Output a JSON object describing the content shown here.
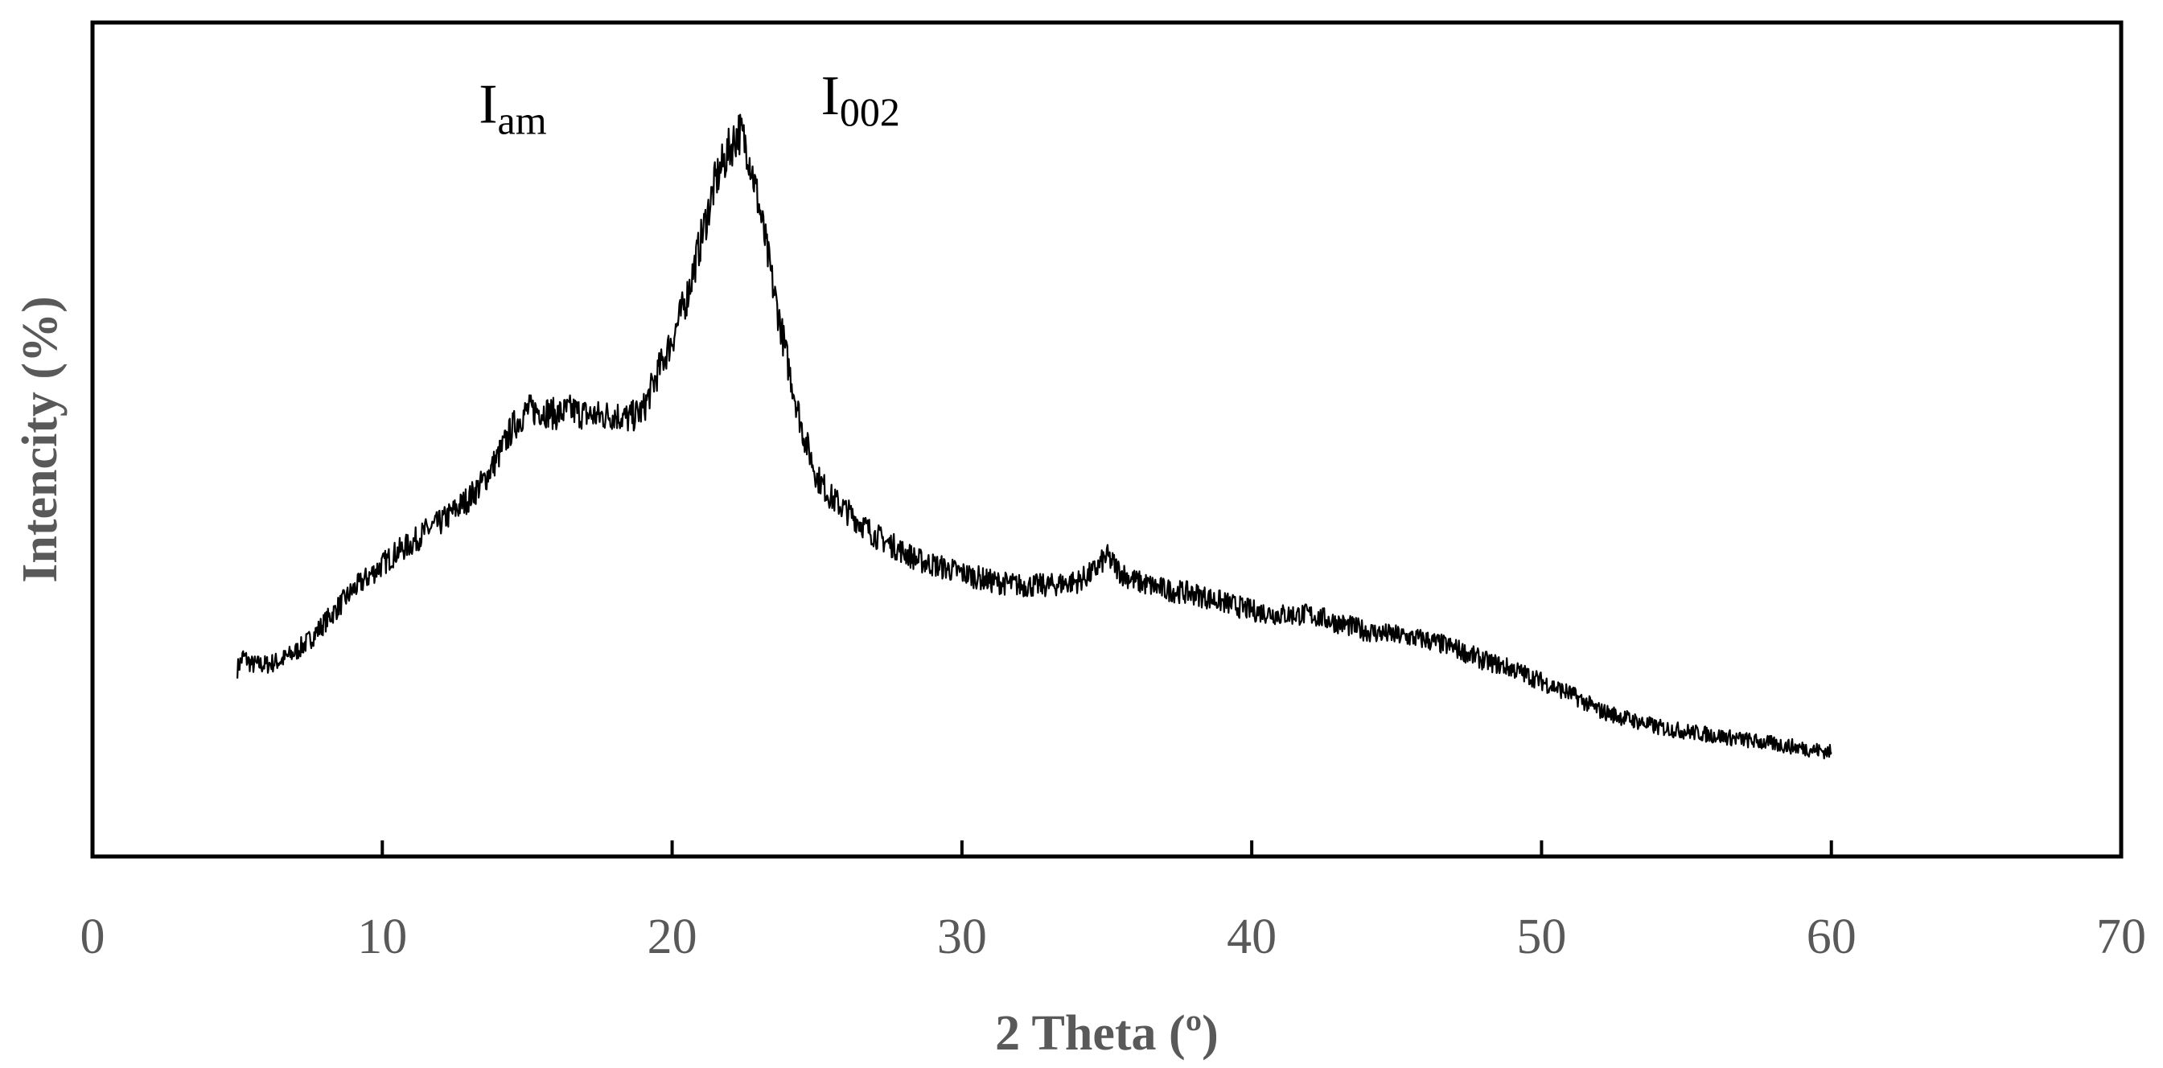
{
  "chart_data": {
    "type": "line",
    "title": "",
    "xlabel": "2 Theta (º)",
    "ylabel": "Intencity (%)",
    "xlim": [
      0,
      70
    ],
    "ylim": [
      0,
      100
    ],
    "x_ticks": [
      "0",
      "10",
      "20",
      "30",
      "40",
      "50",
      "60",
      "70"
    ],
    "y_ticks": [],
    "grid": false,
    "legend": "none",
    "colors": {
      "line": "#000000",
      "axis_text": "#595959",
      "frame": "#000000"
    },
    "annotations": [
      {
        "label": "I",
        "sub": "am",
        "x": 14.5,
        "y": 88
      },
      {
        "label": "I",
        "sub": "002",
        "x": 26.5,
        "y": 89
      }
    ],
    "series": [
      {
        "x": [
          5,
          5.2,
          5.5,
          6,
          6.5,
          7,
          7.5,
          8,
          8.5,
          9,
          9.5,
          10,
          10.5,
          11,
          11.5,
          12,
          12.5,
          13,
          13.5,
          14,
          14.5,
          15,
          15.5,
          16,
          16.5,
          17,
          17.5,
          18,
          18.5,
          19,
          19.5,
          20,
          20.5,
          21,
          21.5,
          22,
          22.3,
          22.6,
          23,
          23.5,
          24,
          24.5,
          25,
          25.5,
          26,
          26.5,
          27,
          27.5,
          28,
          28.5,
          29,
          29.5,
          30,
          31,
          32,
          33,
          34,
          34.5,
          35,
          35.5,
          36,
          37,
          38,
          39,
          40,
          41,
          42,
          43,
          44,
          45,
          46,
          47,
          48,
          49,
          50,
          51,
          52,
          53,
          54,
          55,
          56,
          57,
          58,
          59,
          60
        ],
        "y": [
          22.5,
          24,
          23,
          23,
          23.5,
          24.5,
          26,
          28,
          30,
          32,
          33.5,
          35,
          36.5,
          37.5,
          39,
          40,
          41.5,
          43,
          45,
          48,
          51.5,
          53.5,
          53.5,
          53,
          53.5,
          53,
          52.8,
          53,
          52.5,
          53.5,
          58,
          62,
          67,
          74,
          81,
          85,
          87,
          85,
          78,
          68,
          59,
          51,
          45.5,
          43,
          41.5,
          40,
          38.5,
          37.5,
          36.5,
          35.5,
          35,
          34.5,
          34,
          33,
          32.5,
          32.5,
          33,
          34,
          36,
          34,
          33,
          32,
          31.5,
          30.5,
          29.5,
          29,
          29,
          28,
          27,
          26.5,
          26,
          25,
          23.5,
          22.5,
          21,
          19.5,
          17.5,
          16.5,
          15.5,
          15,
          14.5,
          14,
          13.5,
          13,
          12.5
        ]
      }
    ]
  }
}
